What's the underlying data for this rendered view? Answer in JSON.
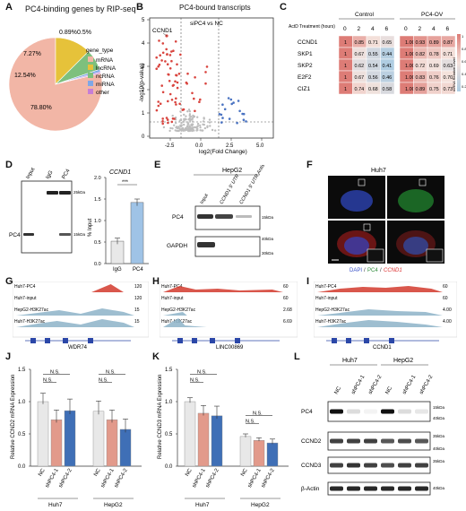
{
  "panels": {
    "a": "A",
    "b": "B",
    "c": "C",
    "d": "D",
    "e": "E",
    "f": "F",
    "g": "G",
    "h": "H",
    "i": "I",
    "j": "J",
    "k": "K",
    "l": "L"
  },
  "panel_a": {
    "title": "PC4-binding genes by RIP-seq",
    "legend_title": "gene_type",
    "slices": [
      {
        "label": "mRNA",
        "value": 78.8,
        "text": "78.80%",
        "color": "#F2B6A6"
      },
      {
        "label": "lncRNA",
        "value": 12.54,
        "text": "12.54%",
        "color": "#E6C23A"
      },
      {
        "label": "ncRNA",
        "value": 7.27,
        "text": "7.27%",
        "color": "#7DC07D"
      },
      {
        "label": "miRNA",
        "value": 0.89,
        "text": "0.89%",
        "color": "#7FA7E6"
      },
      {
        "label": "other",
        "value": 0.5,
        "text": "0.5%",
        "color": "#C67ED6"
      }
    ]
  },
  "panel_b": {
    "title": "PC4-bound transcripts",
    "subtitle": "siPC4  vs  NC",
    "gene_label": "CCND1",
    "xlabel": "log2(Fold Change)",
    "ylabel": "-log10(p-value)",
    "xticks": [
      "-2.5",
      "0.0",
      "2.5",
      "5.0"
    ],
    "yticks": [
      "0",
      "1",
      "2",
      "3",
      "4",
      "5"
    ]
  },
  "panel_c": {
    "group1": "Control",
    "group2": "PC4-OV",
    "row_header": "ActD Treatment (hours)",
    "timepoints": [
      "0",
      "2",
      "4",
      "6"
    ],
    "genes": [
      "CCND1",
      "SKP1",
      "SKP2",
      "E2F2",
      "CIZ1"
    ],
    "control": [
      [
        1,
        0.85,
        0.71,
        0.65
      ],
      [
        1,
        0.67,
        0.55,
        0.44
      ],
      [
        1,
        0.62,
        0.54,
        0.41
      ],
      [
        1,
        0.67,
        0.56,
        0.46
      ],
      [
        1,
        0.74,
        0.68,
        0.58
      ]
    ],
    "pc4ov": [
      [
        1,
        0.93,
        0.89,
        0.87
      ],
      [
        1,
        0.82,
        0.78,
        0.71
      ],
      [
        1,
        0.72,
        0.69,
        0.63
      ],
      [
        1,
        0.83,
        0.76,
        0.7
      ],
      [
        1,
        0.89,
        0.75,
        0.73
      ]
    ],
    "scale_label": "mRNA Relative Level",
    "scale_ticks": [
      "1",
      "0.8",
      "0.6",
      "0.4",
      "0.2"
    ]
  },
  "panel_d": {
    "lanes": [
      "Input",
      "IgG",
      "PC4"
    ],
    "band_label": "PC4",
    "markers": [
      "25kDa",
      "15kDa"
    ],
    "chart_title": "CCND1",
    "ylabel": "% Input",
    "signif": "***",
    "chart_data": {
      "type": "bar",
      "categories": [
        "IgG",
        "PC4"
      ],
      "values": [
        0.52,
        1.42
      ],
      "errors": [
        0.07,
        0.08
      ],
      "ylim": [
        0,
        2.0
      ],
      "yticks": [
        "0.0",
        "0.5",
        "1.0",
        "1.5",
        "2.0"
      ]
    }
  },
  "panel_e": {
    "cell": "HepG2",
    "lanes": [
      "Input",
      "CCND1 5' UTR",
      "CCND1 5' UTR Antisense"
    ],
    "rows": [
      "PC4",
      "GAPDH"
    ],
    "markers": [
      "15kDa",
      "40kDa",
      "30kDa"
    ]
  },
  "panel_f": {
    "cell": "Huh7",
    "legend": [
      "DAPI",
      "/",
      "PC4",
      "/",
      "CCND1"
    ]
  },
  "tracks": [
    {
      "key": "g",
      "gene": "WDR74",
      "labels": [
        "Huh7-PC4",
        "Huh7-input",
        "HepG2-H3K27ac",
        "Huh7-H3K27ac"
      ],
      "scales": [
        "120",
        "120",
        "15",
        "15"
      ]
    },
    {
      "key": "h",
      "gene": "LINC00869",
      "labels": [
        "Huh7-PC4",
        "Huh7-input",
        "HepG2-H3K27ac",
        "Huh7-H3K27ac"
      ],
      "scales": [
        "60",
        "60",
        "2.68",
        "6.69"
      ]
    },
    {
      "key": "i",
      "gene": "CCND1",
      "labels": [
        "Huh7-PC4",
        "Huh7-input",
        "HepG2-H3K27ac",
        "Huh7-H3K27ac"
      ],
      "scales": [
        "60",
        "60",
        "4.00",
        "4.00"
      ]
    }
  ],
  "chart_data": [
    {
      "panel": "J",
      "type": "bar",
      "ylabel": "Relative CCND2 mRNA Expression",
      "ylim": [
        0,
        1.5
      ],
      "yticks": [
        "0.0",
        "0.5",
        "1.0",
        "1.5"
      ],
      "categories": [
        "NC",
        "shPC4-1",
        "shPC4-2",
        "NC",
        "shPC4-1",
        "shPC4-2"
      ],
      "groups": [
        "Huh7",
        "HepG2"
      ],
      "values": [
        1.0,
        0.72,
        0.86,
        0.85,
        0.72,
        0.57
      ],
      "errors": [
        0.13,
        0.15,
        0.18,
        0.16,
        0.15,
        0.16
      ],
      "signif": "N.S."
    },
    {
      "panel": "K",
      "type": "bar",
      "ylabel": "Relative CCND3 mRNA Expression",
      "ylim": [
        0,
        1.5
      ],
      "yticks": [
        "0.0",
        "0.5",
        "1.0",
        "1.5"
      ],
      "categories": [
        "NC",
        "shPC4-1",
        "shPC4-2",
        "NC",
        "shPC4-1",
        "shPC4-2"
      ],
      "groups": [
        "Huh7",
        "HepG2"
      ],
      "values": [
        1.0,
        0.82,
        0.78,
        0.46,
        0.4,
        0.36
      ],
      "errors": [
        0.06,
        0.12,
        0.15,
        0.04,
        0.04,
        0.06
      ],
      "signif": "N.S."
    }
  ],
  "panel_l": {
    "groups": [
      "Huh7",
      "HepG2"
    ],
    "lanes": [
      "NC",
      "shPC4-1",
      "shPC4-2",
      "NC",
      "shPC4-1",
      "shPC4-2"
    ],
    "rows": [
      "PC4",
      "CCND2",
      "CCND3",
      "β-Actin"
    ],
    "markers": [
      "15kDa",
      "40kDa",
      "35kDa",
      "40kDa",
      "35kDa",
      "40kDa"
    ]
  },
  "colors": {
    "nc": "#E8E8E8",
    "sh1": "#E29A8B",
    "sh2": "#3F6FB6",
    "up": "#D9453F",
    "down": "#4A73C2",
    "ns": "#BDBDBD",
    "track_red": "#D23A2D",
    "track_gray": "#8C8C8C",
    "track_blue": "#8DB3C8"
  }
}
